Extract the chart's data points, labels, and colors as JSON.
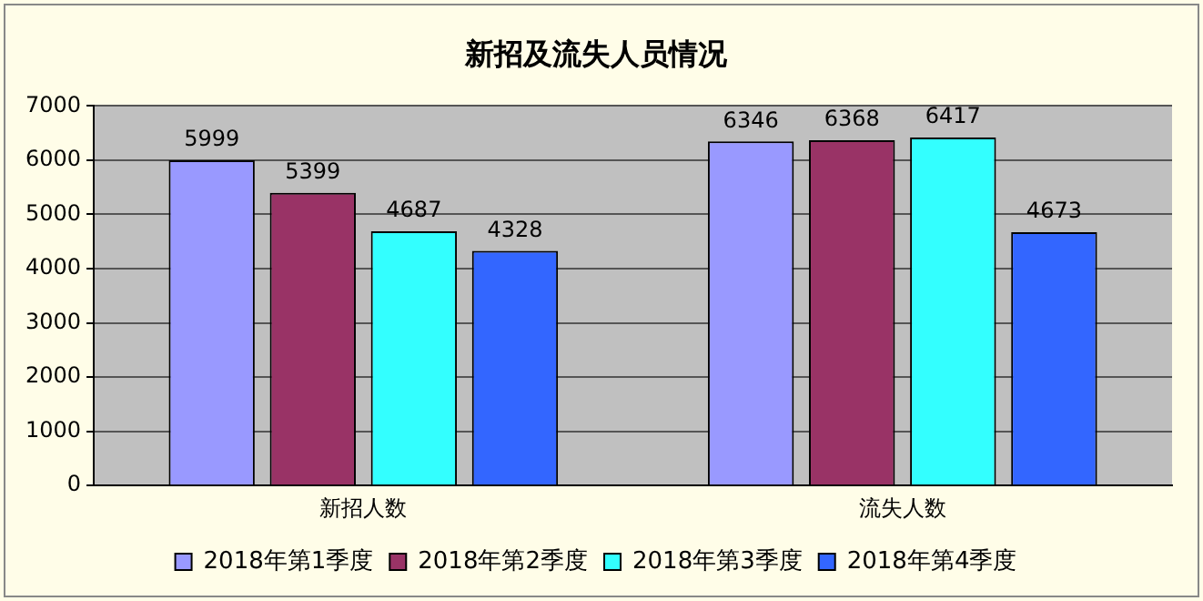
{
  "chart_data": {
    "type": "bar",
    "title": "新招及流失人员情况",
    "categories": [
      "新招人数",
      "流失人数"
    ],
    "series": [
      {
        "name": "2018年第1季度",
        "color": "#9999ff",
        "values": [
          5999,
          6346
        ]
      },
      {
        "name": "2018年第2季度",
        "color": "#993366",
        "values": [
          5399,
          6368
        ]
      },
      {
        "name": "2018年第3季度",
        "color": "#33ffff",
        "values": [
          4687,
          6417
        ]
      },
      {
        "name": "2018年第4季度",
        "color": "#3366ff",
        "values": [
          4328,
          4673
        ]
      }
    ],
    "ylim": [
      0,
      7000
    ],
    "yticks": [
      0,
      1000,
      2000,
      3000,
      4000,
      5000,
      6000,
      7000
    ],
    "grid": "y",
    "legend": "bottom",
    "data_labels": true
  }
}
